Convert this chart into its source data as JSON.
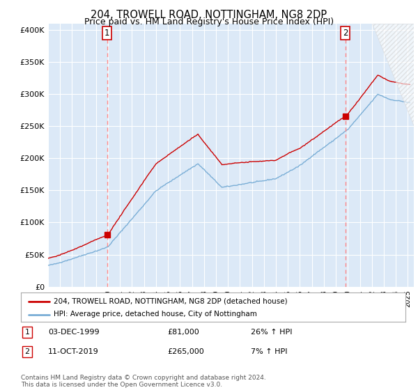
{
  "title": "204, TROWELL ROAD, NOTTINGHAM, NG8 2DP",
  "subtitle": "Price paid vs. HM Land Registry's House Price Index (HPI)",
  "ylabel_ticks": [
    "£0",
    "£50K",
    "£100K",
    "£150K",
    "£200K",
    "£250K",
    "£300K",
    "£350K",
    "£400K"
  ],
  "ytick_values": [
    0,
    50000,
    100000,
    150000,
    200000,
    250000,
    300000,
    350000,
    400000
  ],
  "ylim": [
    0,
    410000
  ],
  "xlim_start": 1995.0,
  "xlim_end": 2025.5,
  "background_color": "#dce9f7",
  "fig_bg_color": "#ffffff",
  "red_line_color": "#cc0000",
  "blue_line_color": "#7aaed6",
  "sale1_x": 1999.92,
  "sale1_y": 81000,
  "sale2_x": 2019.78,
  "sale2_y": 265000,
  "legend_label1": "204, TROWELL ROAD, NOTTINGHAM, NG8 2DP (detached house)",
  "legend_label2": "HPI: Average price, detached house, City of Nottingham",
  "note1_label": "1",
  "note1_date": "03-DEC-1999",
  "note1_price": "£81,000",
  "note1_hpi": "26% ↑ HPI",
  "note2_label": "2",
  "note2_date": "11-OCT-2019",
  "note2_price": "£265,000",
  "note2_hpi": "7% ↑ HPI",
  "footer": "Contains HM Land Registry data © Crown copyright and database right 2024.\nThis data is licensed under the Open Government Licence v3.0."
}
